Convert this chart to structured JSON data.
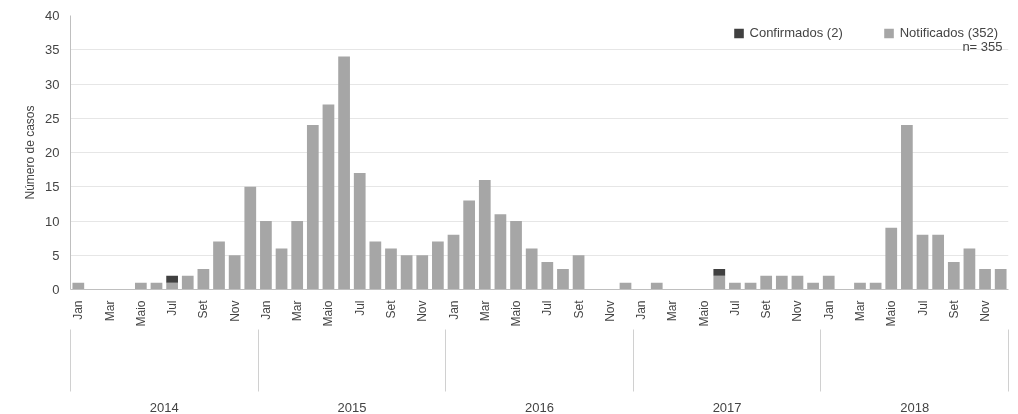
{
  "chart_data": {
    "type": "bar",
    "stacked": true,
    "ylabel": "Número de casos",
    "categories": [
      "Jan",
      null,
      "Mar",
      null,
      "Maio",
      null,
      "Jul",
      null,
      "Set",
      null,
      "Nov",
      null,
      "Jan",
      null,
      "Mar",
      null,
      "Maio",
      null,
      "Jul",
      null,
      "Set",
      null,
      "Nov",
      null,
      "Jan",
      null,
      "Mar",
      null,
      "Maio",
      null,
      "Jul",
      null,
      "Set",
      null,
      "Nov",
      null,
      "Jan",
      null,
      "Mar",
      null,
      "Maio",
      null,
      "Jul",
      null,
      "Set",
      null,
      "Nov",
      null,
      "Jan",
      null,
      "Mar",
      null,
      "Maio",
      null,
      "Jul",
      null,
      "Set",
      null,
      "Nov",
      null
    ],
    "series": [
      {
        "name": "Notificados (352)",
        "color": "#a6a6a6",
        "values": [
          1,
          0,
          0,
          0,
          1,
          1,
          1,
          2,
          3,
          7,
          5,
          15,
          10,
          6,
          10,
          24,
          27,
          34,
          17,
          7,
          6,
          5,
          5,
          7,
          8,
          13,
          16,
          11,
          10,
          6,
          4,
          3,
          5,
          0,
          0,
          1,
          0,
          1,
          0,
          0,
          0,
          2,
          1,
          1,
          2,
          2,
          2,
          1,
          2,
          0,
          1,
          1,
          9,
          24,
          8,
          8,
          4,
          6,
          3,
          3
        ]
      },
      {
        "name": "Confirmados (2)",
        "color": "#404040",
        "values": [
          0,
          0,
          0,
          0,
          0,
          0,
          1,
          0,
          0,
          0,
          0,
          0,
          0,
          0,
          0,
          0,
          0,
          0,
          0,
          0,
          0,
          0,
          0,
          0,
          0,
          0,
          0,
          0,
          0,
          0,
          0,
          0,
          0,
          0,
          0,
          0,
          0,
          0,
          0,
          0,
          0,
          1,
          0,
          0,
          0,
          0,
          0,
          0,
          0,
          0,
          0,
          0,
          0,
          0,
          0,
          0,
          0,
          0,
          0,
          0
        ]
      }
    ],
    "annotations": [
      "2014",
      "2015",
      "2016",
      "2017",
      "2018",
      "n= 355"
    ],
    "ylim": [
      0,
      40
    ],
    "yticks": [
      0,
      5,
      10,
      15,
      20,
      25,
      30,
      35,
      40
    ],
    "grid": "y",
    "legend": "top right"
  }
}
